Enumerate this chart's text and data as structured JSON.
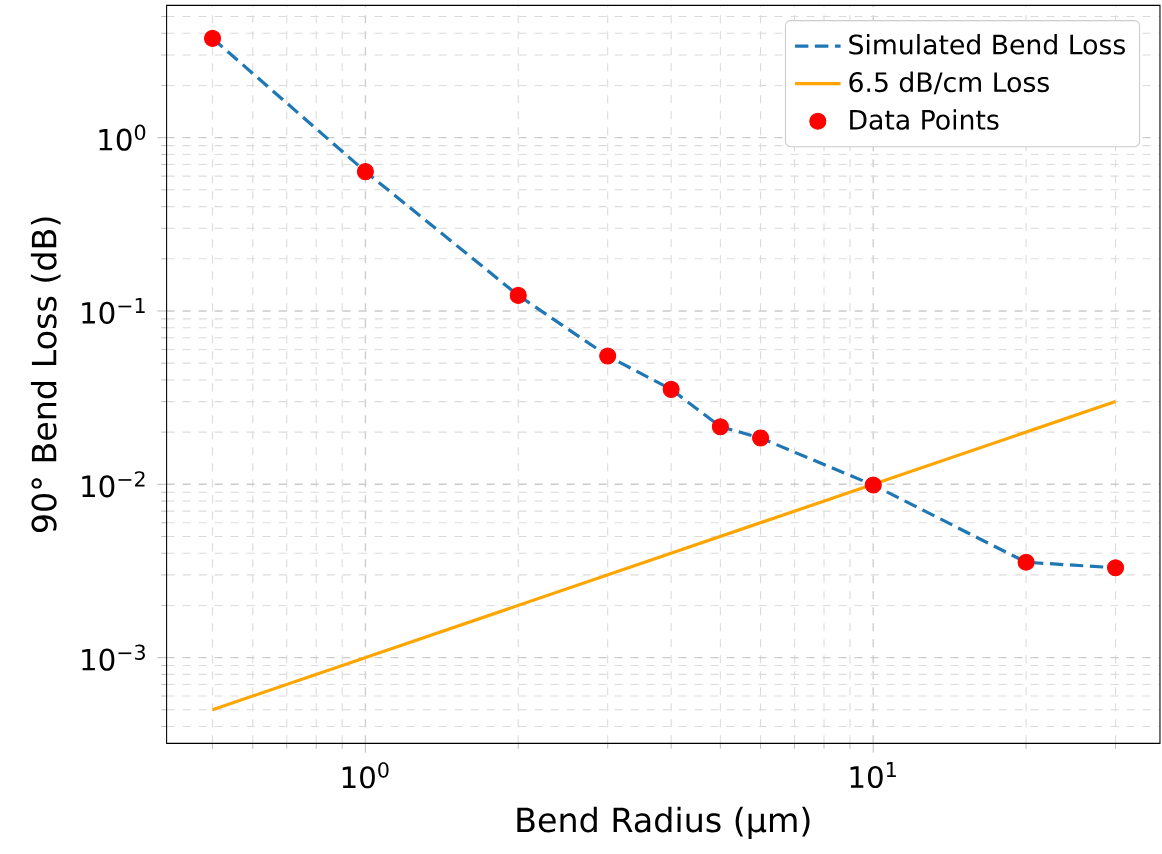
{
  "chart_data": {
    "type": "line",
    "xlabel": "Bend Radius (μm)",
    "ylabel": "90° Bend Loss (dB)",
    "x": [
      0.5,
      1,
      2,
      3,
      4,
      5,
      6,
      10,
      20,
      30
    ],
    "series": [
      {
        "name": "Simulated Bend Loss",
        "color": "#1f77b4",
        "line_style": "dashed",
        "values": [
          3.74,
          0.637,
          0.123,
          0.055,
          0.0353,
          0.0215,
          0.0185,
          0.0099,
          0.00355,
          0.0033
        ]
      },
      {
        "name": "6.5 dB/cm Loss",
        "color": "#ffa500",
        "line_style": "solid",
        "x": [
          0.5,
          30
        ],
        "values": [
          0.0005,
          0.03
        ]
      },
      {
        "name": "Data Points",
        "type": "scatter",
        "color": "#ff0000",
        "values": [
          3.74,
          0.637,
          0.123,
          0.055,
          0.0353,
          0.0215,
          0.0185,
          0.0099,
          0.00355,
          0.0033
        ]
      }
    ],
    "log": "xy",
    "grid": true,
    "legend": "top right",
    "xlim": [
      0.406,
      36.7
    ],
    "ylim": [
      0.00032,
      5.8
    ],
    "xticks": [
      {
        "value": 1,
        "label": "10$^{0}$"
      },
      {
        "value": 10,
        "label": "10$^{1}$"
      }
    ],
    "yticks": [
      {
        "value": 0.001,
        "label": "10$^{−3}$"
      },
      {
        "value": 0.01,
        "label": "10$^{−2}$"
      },
      {
        "value": 0.1,
        "label": "10$^{−1}$"
      },
      {
        "value": 1,
        "label": "10$^{0}$"
      }
    ]
  }
}
